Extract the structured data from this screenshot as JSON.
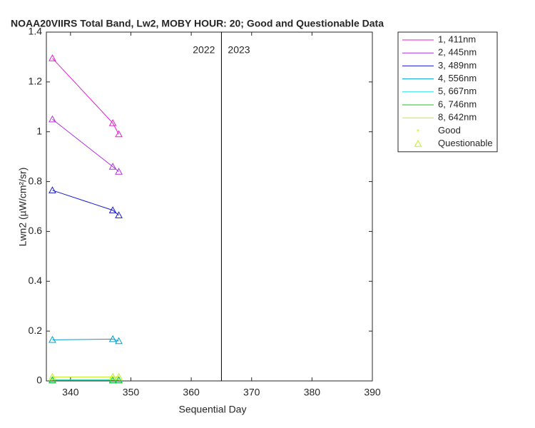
{
  "chart_data": {
    "type": "line",
    "title": "NOAA20VIIRS Total Band, Lw2, MOBY HOUR: 20;  Good and Questionable Data",
    "xlabel": "Sequential Day",
    "ylabel": "Lwn2 (µW/cm²/sr)",
    "x": [
      337,
      347,
      348
    ],
    "series": [
      {
        "name": "1, 411nm",
        "color": "#e020d0",
        "values": [
          1.295,
          1.035,
          0.99
        ]
      },
      {
        "name": "2, 445nm",
        "color": "#b030e0",
        "values": [
          1.05,
          0.86,
          0.84
        ]
      },
      {
        "name": "3, 489nm",
        "color": "#1a1ad0",
        "values": [
          0.765,
          0.685,
          0.665
        ]
      },
      {
        "name": "4, 556nm",
        "color": "#00a0d0",
        "values": [
          0.165,
          0.168,
          0.16
        ]
      },
      {
        "name": "5, 667nm",
        "color": "#20e0e0",
        "values": [
          0.005,
          0.005,
          0.005
        ]
      },
      {
        "name": "6, 746nm",
        "color": "#20c020",
        "values": [
          0.002,
          0.002,
          0.002
        ]
      },
      {
        "name": "8, 642nm",
        "color": "#c0f020",
        "values": [
          0.016,
          0.016,
          0.016
        ]
      }
    ],
    "marker_legend": [
      "Good",
      "Questionable"
    ],
    "divider_x": 365,
    "divider_labels": [
      "2022",
      "2023"
    ],
    "xlim": [
      336,
      390
    ],
    "xticks": [
      340,
      350,
      360,
      370,
      380,
      390
    ],
    "ylim": [
      0,
      1.4
    ],
    "yticks": [
      0,
      0.2,
      0.4,
      0.6,
      0.8,
      1,
      1.2,
      1.4
    ],
    "grid": false,
    "legend": "outside-right"
  }
}
